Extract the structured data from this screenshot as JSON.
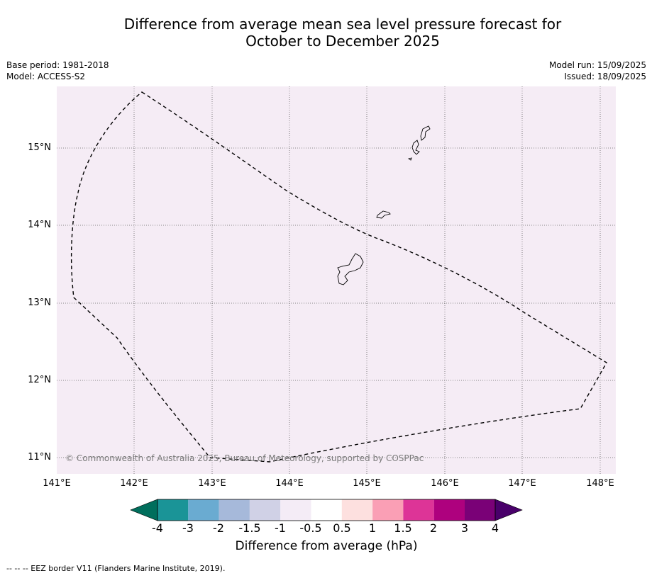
{
  "title_line1": "Difference from average mean sea level pressure forecast for",
  "title_line2": "October to December 2025",
  "meta_left": {
    "base_period": "Base period: 1981-2018",
    "model": "Model: ACCESS-S2"
  },
  "meta_right": {
    "model_run": "Model run: 15/09/2025",
    "issued": "Issued: 18/09/2025"
  },
  "map": {
    "copyright": "© Commonwealth of Australia 2025, Bureau of Meteorology, supported by COSPPac",
    "background_color": "#f5ecf5",
    "lat_labels": [
      "15°N",
      "14°N",
      "13°N",
      "12°N",
      "11°N"
    ],
    "lon_labels": [
      "141°E",
      "142°E",
      "143°E",
      "144°E",
      "145°E",
      "146°E",
      "147°E",
      "148°E"
    ]
  },
  "colorbar": {
    "colors": [
      "#006e5c",
      "#1a9497",
      "#6aabd1",
      "#a6b9da",
      "#d0d1e6",
      "#f4ecf6",
      "#ffffff",
      "#fde0df",
      "#fa9fb5",
      "#dd3497",
      "#ae017e",
      "#7a0177",
      "#49006a"
    ],
    "tick_labels": [
      "-4",
      "-3",
      "-2",
      "-1.5",
      "-1",
      "-0.5",
      "0.5",
      "1",
      "1.5",
      "2",
      "3",
      "4"
    ],
    "title": "Difference from average (hPa)"
  },
  "footnote": "--  --  -- EEZ border V11 (Flanders Marine Institute, 2019)."
}
